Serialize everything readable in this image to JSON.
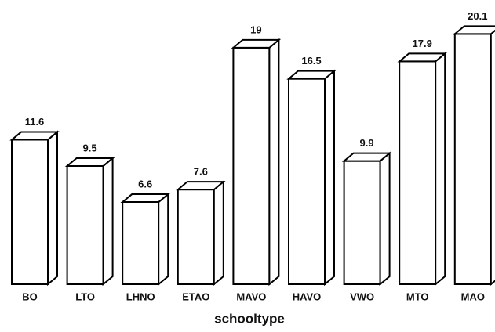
{
  "chart_data": {
    "type": "bar3d",
    "categories": [
      "BO",
      "LTO",
      "LHNO",
      "ETAO",
      "MAVO",
      "HAVO",
      "VWO",
      "MTO",
      "MAO"
    ],
    "values": [
      11.6,
      9.5,
      6.6,
      7.6,
      19,
      16.5,
      9.9,
      17.9,
      20.1
    ],
    "x_label": "schooltype",
    "color": "#ffffff"
  }
}
